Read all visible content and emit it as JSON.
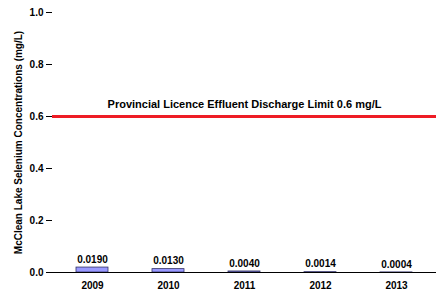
{
  "chart_data": {
    "type": "bar",
    "y_label": "McClean Lake Selenium Concentrations (mg/L)",
    "categories": [
      "2009",
      "2010",
      "2011",
      "2012",
      "2013"
    ],
    "values": [
      0.019,
      0.013,
      0.004,
      0.0014,
      0.0004
    ],
    "value_labels": [
      "0.0190",
      "0.0130",
      "0.0040",
      "0.0014",
      "0.0004"
    ],
    "data_labels": true,
    "color": "#9999ff",
    "ylim": [
      0,
      1
    ],
    "yticks": [
      {
        "value": 0,
        "label": "0.0"
      },
      0.2,
      0.4,
      0.6,
      0.8,
      {
        "value": 1,
        "label": "1.0"
      }
    ],
    "grid": false,
    "limit_line": {
      "value": 0.6,
      "label": "Provincial Licence Effluent Discharge Limit 0.6 mg/L",
      "color": "#ee1c25"
    }
  }
}
